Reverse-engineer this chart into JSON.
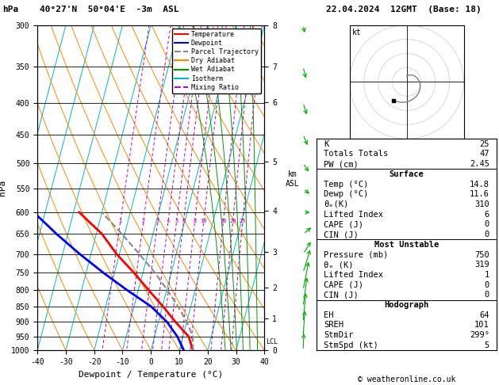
{
  "title_left": "40°27'N  50°04'E  -3m  ASL",
  "title_right": "22.04.2024  12GMT  (Base: 18)",
  "xlabel": "Dewpoint / Temperature (°C)",
  "ylabel_left": "hPa",
  "pressure_ticks": [
    300,
    350,
    400,
    450,
    500,
    550,
    600,
    650,
    700,
    750,
    800,
    850,
    900,
    950,
    1000
  ],
  "isotherm_color": "#00BBBB",
  "dry_adiabat_color": "#FF8800",
  "wet_adiabat_color": "#009900",
  "mixing_ratio_color": "#BB00BB",
  "mixing_ratio_values": [
    1,
    2,
    3,
    4,
    5,
    6,
    8,
    10,
    16,
    20,
    25
  ],
  "km_asl_pressures": [
    1013,
    900,
    800,
    700,
    600,
    500,
    400,
    350,
    300
  ],
  "km_asl_labels": [
    "0",
    "1",
    "2",
    "3",
    "4",
    "5",
    "6",
    "7",
    "8"
  ],
  "temp_profile_T": [
    14.8,
    12.0,
    6.0,
    0.2,
    -6.4,
    -13.2,
    -21.0,
    -28.0,
    -38.0
  ],
  "temp_profile_P": [
    1000,
    950,
    900,
    850,
    800,
    750,
    700,
    650,
    600
  ],
  "dewp_profile_T": [
    11.6,
    8.0,
    3.0,
    -4.0,
    -14.0,
    -24.0,
    -34.0,
    -44.0,
    -54.0
  ],
  "dewp_profile_P": [
    1000,
    950,
    900,
    850,
    800,
    750,
    700,
    650,
    600
  ],
  "parcel_profile_T": [
    14.8,
    13.5,
    10.0,
    5.5,
    0.2,
    -5.8,
    -13.0,
    -21.0,
    -30.0
  ],
  "parcel_profile_P": [
    1000,
    950,
    900,
    850,
    800,
    750,
    700,
    650,
    600
  ],
  "lcl_pressure": 970,
  "temp_color": "#FF0000",
  "dewp_color": "#0000FF",
  "parcel_color": "#888888",
  "legend_items": [
    {
      "label": "Temperature",
      "color": "#FF0000",
      "ls": "-"
    },
    {
      "label": "Dewpoint",
      "color": "#0000FF",
      "ls": "-"
    },
    {
      "label": "Parcel Trajectory",
      "color": "#888888",
      "ls": "--"
    },
    {
      "label": "Dry Adiabat",
      "color": "#FF8800",
      "ls": "-"
    },
    {
      "label": "Wet Adiabat",
      "color": "#009900",
      "ls": "-"
    },
    {
      "label": "Isotherm",
      "color": "#00BBBB",
      "ls": "-"
    },
    {
      "label": "Mixing Ratio",
      "color": "#BB00BB",
      "ls": "--"
    }
  ],
  "right_panel": {
    "K": "25",
    "Totals_Totals": "47",
    "PW_cm": "2.45",
    "Surf_Temp": "14.8",
    "Surf_Dewp": "11.6",
    "Surf_ThetaE": "310",
    "Surf_LI": "6",
    "Surf_CAPE": "0",
    "Surf_CIN": "0",
    "MU_Pressure": "750",
    "MU_ThetaE": "319",
    "MU_LI": "1",
    "MU_CAPE": "0",
    "MU_CIN": "0",
    "EH": "64",
    "SREH": "101",
    "StmDir": "299°",
    "StmSpd_kt": "5"
  },
  "wind_barbs_P": [
    1000,
    950,
    900,
    850,
    800,
    750,
    700,
    650,
    600,
    550,
    500,
    450,
    400,
    350,
    300
  ],
  "wind_barbs_spd": [
    5,
    8,
    10,
    12,
    15,
    18,
    20,
    22,
    20,
    18,
    15,
    12,
    10,
    8,
    5
  ],
  "wind_barbs_dir": [
    200,
    210,
    220,
    230,
    240,
    250,
    260,
    265,
    270,
    275,
    280,
    285,
    290,
    295,
    299
  ]
}
